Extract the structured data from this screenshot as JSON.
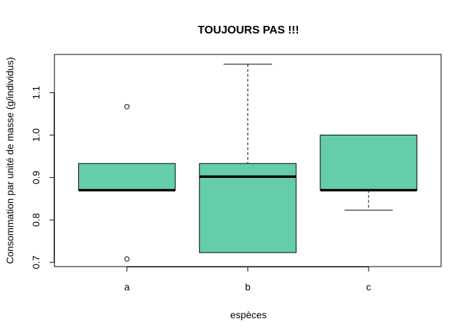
{
  "chart_data": {
    "type": "boxplot",
    "title": "TOUJOURS PAS !!!",
    "xlabel": "espèces",
    "ylabel": "Consommation par unité de masse (g/individus)",
    "categories": [
      "a",
      "b",
      "c"
    ],
    "ylim": [
      0.69,
      1.19
    ],
    "yticks": [
      0.7,
      0.8,
      0.9,
      1.0,
      1.1
    ],
    "ytick_labels": [
      "0.7",
      "0.8",
      "0.9",
      "1.0",
      "1.1"
    ],
    "box_color": "#66CDAA",
    "grid": false,
    "boxes": [
      {
        "category": "a",
        "whisker_low": 0.87,
        "q1": 0.87,
        "median": 0.87,
        "q3": 0.933,
        "whisker_high": 0.933,
        "outliers": [
          1.067,
          0.708
        ]
      },
      {
        "category": "b",
        "whisker_low": 0.723,
        "q1": 0.723,
        "median": 0.902,
        "q3": 0.933,
        "whisker_high": 1.167,
        "outliers": []
      },
      {
        "category": "c",
        "whisker_low": 0.823,
        "q1": 0.87,
        "median": 0.87,
        "q3": 1.0,
        "whisker_high": 1.0,
        "outliers": []
      }
    ]
  }
}
